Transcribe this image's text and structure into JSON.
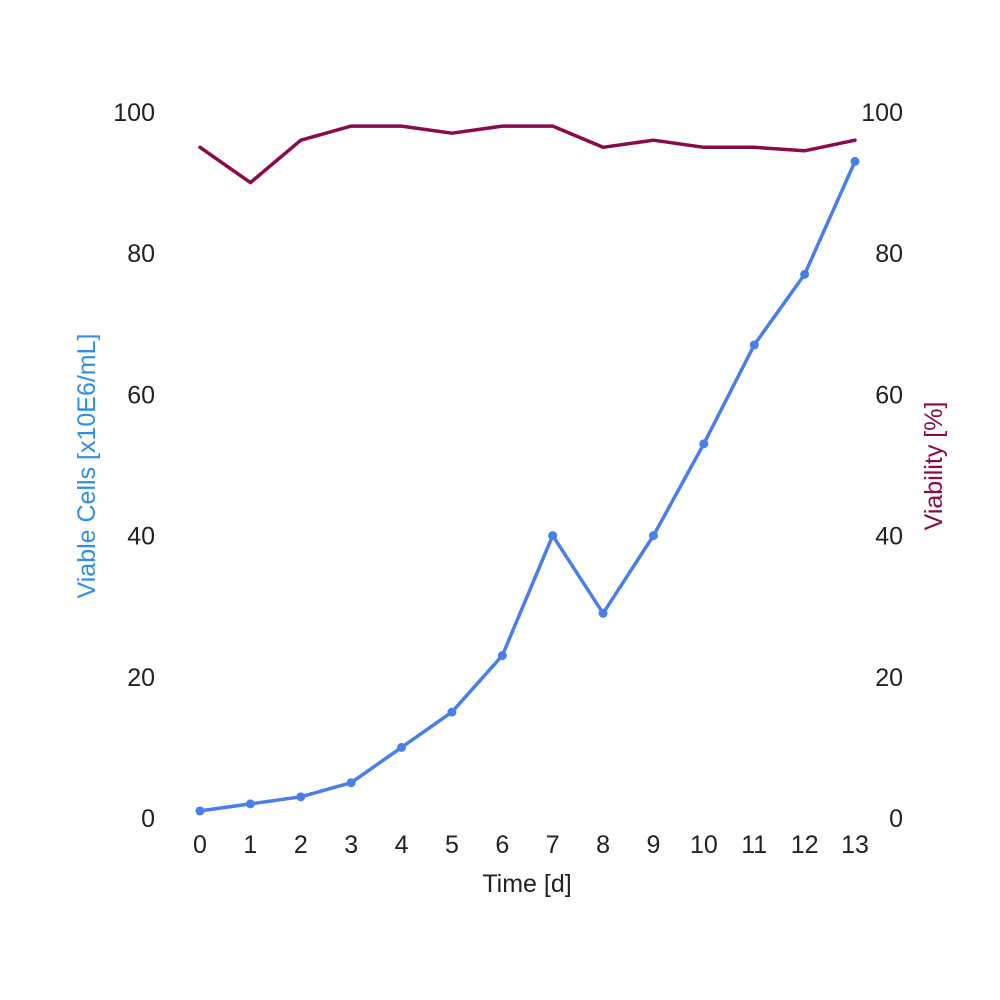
{
  "chart_data": {
    "type": "line",
    "title": "",
    "xlabel": "Time [d]",
    "ylabel_left": "Viable Cells [x10E6/mL]",
    "ylabel_right": "Viability [%]",
    "x": [
      0,
      1,
      2,
      3,
      4,
      5,
      6,
      7,
      8,
      9,
      10,
      11,
      12,
      13
    ],
    "xlim": [
      0,
      13
    ],
    "ylim_left": [
      0,
      100
    ],
    "ylim_right": [
      0,
      100
    ],
    "yticks": [
      0,
      20,
      40,
      60,
      80,
      100
    ],
    "grid": false,
    "series": [
      {
        "axis": "left",
        "color": "#4a7ee8",
        "markers": true,
        "values": [
          1,
          2,
          3,
          5,
          10,
          15,
          23,
          40,
          29,
          40,
          53,
          67,
          77,
          93
        ]
      },
      {
        "axis": "right",
        "color": "#8b0a4a",
        "markers": false,
        "values": [
          95,
          90,
          96,
          98,
          98,
          97,
          98,
          98,
          95,
          96,
          95,
          95,
          94.5,
          96
        ]
      }
    ],
    "colors": {
      "left_axis_title": "#2f8fe6",
      "right_axis_title": "#8b0a4a",
      "tick_text": "#222222"
    }
  }
}
